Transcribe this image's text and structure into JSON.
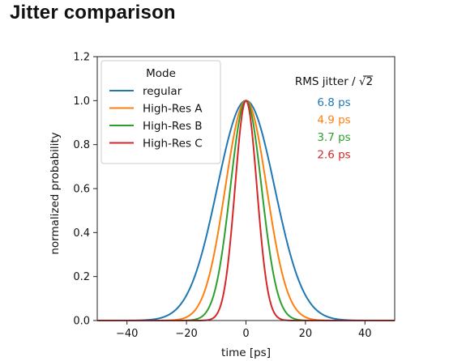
{
  "page": {
    "title": "Jitter comparison"
  },
  "chart_data": {
    "type": "line",
    "xlabel": "time [ps]",
    "ylabel": "normalized probability",
    "xlim": [
      -50,
      50
    ],
    "ylim": [
      0,
      1.2
    ],
    "xticks": [
      -40,
      -20,
      0,
      20,
      40
    ],
    "xtick_labels": [
      "−40",
      "−20",
      "0",
      "20",
      "40"
    ],
    "yticks": [
      0.0,
      0.2,
      0.4,
      0.6,
      0.8,
      1.0,
      1.2
    ],
    "ytick_labels": [
      "0.0",
      "0.2",
      "0.4",
      "0.6",
      "0.8",
      "1.0",
      "1.2"
    ],
    "grid": false,
    "legend": {
      "title": "Mode",
      "placement": "upper-left"
    },
    "rms_header_prefix": "RMS jitter / ",
    "rms_header_symbol": "√",
    "rms_header_number": "2",
    "series": [
      {
        "name": "regular",
        "color": "#1f77b4",
        "rms_ps": 6.8,
        "rms_label": "6.8 ps"
      },
      {
        "name": "High-Res A",
        "color": "#ff7f0e",
        "rms_ps": 4.9,
        "rms_label": "4.9 ps"
      },
      {
        "name": "High-Res B",
        "color": "#2ca02c",
        "rms_ps": 3.7,
        "rms_label": "3.7 ps"
      },
      {
        "name": "High-Res C",
        "color": "#d62728",
        "rms_ps": 2.6,
        "rms_label": "2.6 ps"
      }
    ]
  }
}
